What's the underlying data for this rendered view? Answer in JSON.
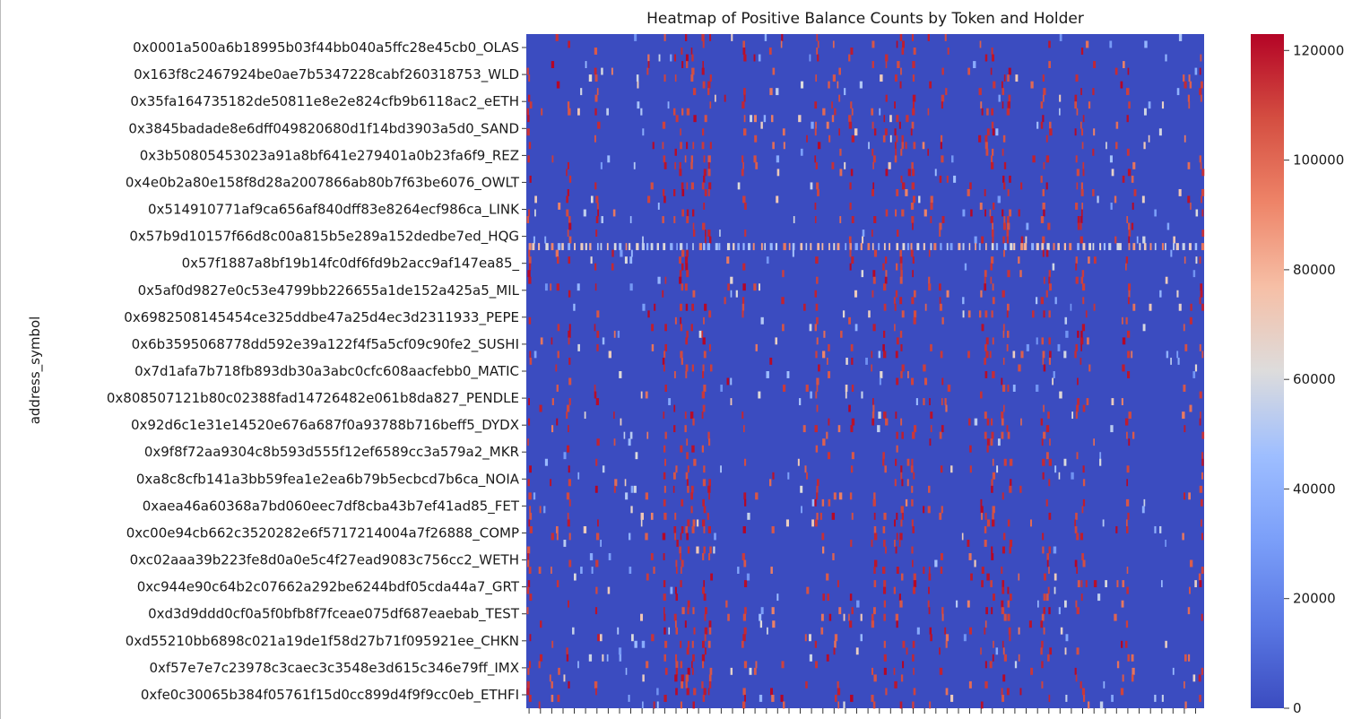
{
  "chart_data": {
    "type": "heatmap",
    "title": "Heatmap of Positive Balance Counts by Token and Holder",
    "ylabel": "address_symbol",
    "xlabel": "",
    "colormap": "coolwarm",
    "colorbar": {
      "min": 0,
      "max": 123000,
      "ticks": [
        0,
        20000,
        40000,
        60000,
        80000,
        100000,
        120000
      ],
      "tick_labels": [
        "0",
        "20000",
        "40000",
        "60000",
        "80000",
        "100000",
        "120000"
      ]
    },
    "columns": 120,
    "column_ticks_labeled": false,
    "row_labels": [
      "0x0001a500a6b18995b03f44bb040a5ffc28e45cb0_OLAS",
      "0x163f8c2467924be0ae7b5347228cabf260318753_WLD",
      "0x35fa164735182de50811e8e2e824cfb9b6118ac2_eETH",
      "0x3845badade8e6dff049820680d1f14bd3903a5d0_SAND",
      "0x3b50805453023a91a8bf641e279401a0b23fa6f9_REZ",
      "0x4e0b2a80e158f8d28a2007866ab80b7f63be6076_OWLT",
      "0x514910771af9ca656af840dff83e8264ecf986ca_LINK",
      "0x57b9d10157f66d8c00a815b5e289a152dedbe7ed_HQG",
      "0x57f1887a8bf19b14fc0df6fd9b2acc9af147ea85_",
      "0x5af0d9827e0c53e4799bb226655a1de152a425a5_MIL",
      "0x6982508145454ce325ddbe47a25d4ec3d2311933_PEPE",
      "0x6b3595068778dd592e39a122f4f5a5cf09c90fe2_SUSHI",
      "0x7d1afa7b718fb893db30a3abc0cfc608aacfebb0_MATIC",
      "0x808507121b80c02388fad14726482e061b8da827_PENDLE",
      "0x92d6c1e31e14520e676a687f0a93788b716beff5_DYDX",
      "0x9f8f72aa9304c8b593d555f12ef6589cc3a579a2_MKR",
      "0xa8c8cfb141a3bb59fea1e2ea6b79b5ecbcd7b6ca_NOIA",
      "0xaea46a60368a7bd060eec7df8cba43b7ef41ad85_FET",
      "0xc00e94cb662c3520282e6f5717214004a7f26888_COMP",
      "0xc02aaa39b223fe8d0a0e5c4f27ead9083c756cc2_WETH",
      "0xc944e90c64b2c07662a292be6244bdf05cda44a7_GRT",
      "0xd3d9ddd0cf0a5f0bfb8f7fceae075df687eaebab_TEST",
      "0xd55210bb6898c021a19de1f58d27b71f095921ee_CHKN",
      "0xf57e7e7c23978c3caec3c3548e3d615c346e79ff_IMX",
      "0xfe0c30065b384f05761f15d0cc899d4f9f9cc0eb_ETHFI"
    ]
  }
}
